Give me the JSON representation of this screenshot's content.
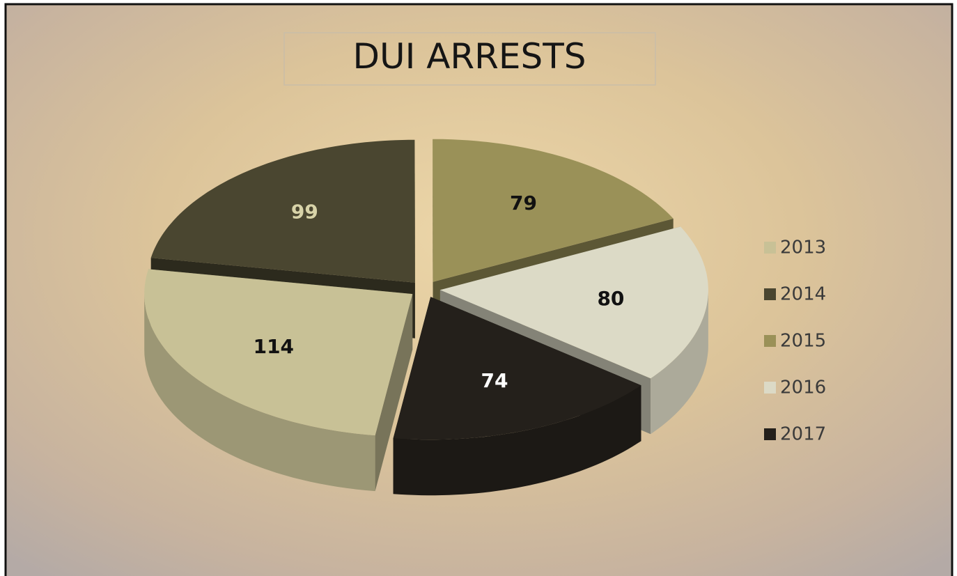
{
  "chart_data": {
    "type": "pie",
    "title": "DUI ARRESTS",
    "categories": [
      "2013",
      "2014",
      "2015",
      "2016",
      "2017"
    ],
    "values": [
      114,
      99,
      79,
      80,
      74
    ],
    "colors": [
      "#c8c196",
      "#4a4630",
      "#9a9158",
      "#dcdac6",
      "#24201b"
    ],
    "legend": "right"
  }
}
